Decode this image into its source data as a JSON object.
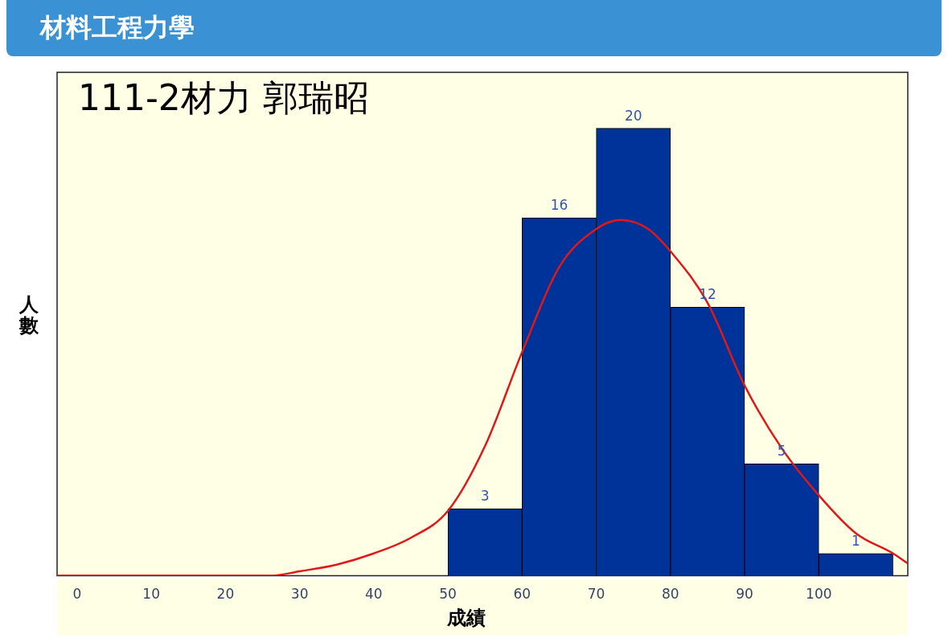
{
  "chart_data": {
    "type": "histogram",
    "title": "材料工程力學",
    "subtitle": "111-2材力 郭瑞昭",
    "xlabel": "成績",
    "ylabel": "人數",
    "bins": [
      50,
      60,
      70,
      80,
      90,
      100,
      110
    ],
    "values": [
      3,
      16,
      20,
      12,
      5,
      1
    ],
    "color": "#003399",
    "value_labels": [
      "3",
      "16",
      "20",
      "12",
      "5",
      "1"
    ],
    "series": [
      {
        "type": "line",
        "color": "#e01818",
        "x": [
          -2.7,
          10,
          20,
          26,
          30,
          35,
          40,
          45,
          50,
          55,
          60,
          65,
          70,
          73.3,
          77,
          80,
          85,
          90,
          95,
          100,
          105,
          110,
          112
        ],
        "values": [
          0,
          0,
          0,
          0,
          0.2,
          0.5,
          1,
          1.7,
          2.9,
          5.8,
          10,
          13.8,
          15.5,
          15.9,
          15.5,
          14.5,
          12.2,
          8.5,
          5.7,
          3.6,
          1.9,
          1,
          0.55
        ]
      }
    ],
    "xlim": [
      -2.7,
      112
    ],
    "xticks": [
      0,
      10,
      20,
      30,
      40,
      50,
      60,
      70,
      80,
      90,
      100
    ],
    "ylim": [
      0,
      22.5
    ],
    "tick_labels": "x",
    "grid": false,
    "legend": false
  }
}
